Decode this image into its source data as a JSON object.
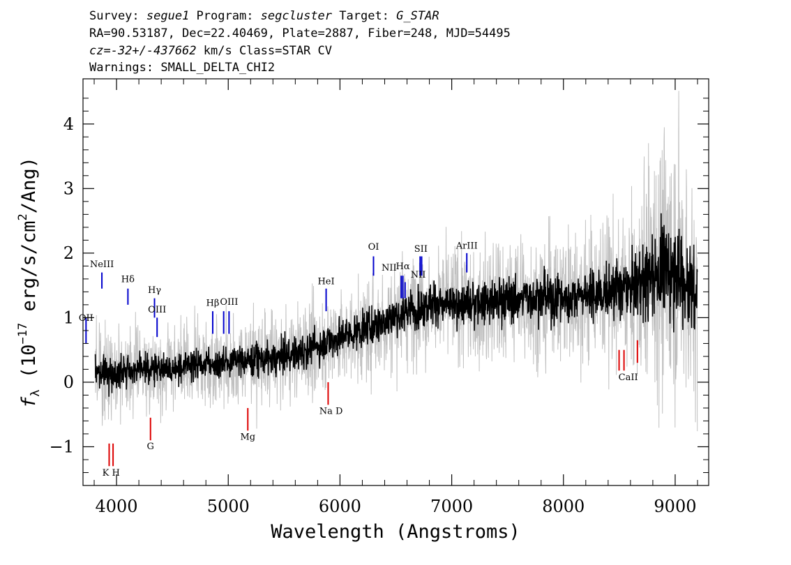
{
  "header": {
    "line1": {
      "k1": "Survey: ",
      "v1": "segue1",
      "k2": " Program: ",
      "v2": "segcluster",
      "k3": " Target: ",
      "v3": "G_STAR"
    },
    "line2": "RA=90.53187, Dec=22.40469, Plate=2887, Fiber=248, MJD=54495",
    "line3": {
      "v1": "cz=-32+/-437662",
      "rest": " km/s Class=STAR CV"
    },
    "line4": "Warnings: SMALL_DELTA_CHI2"
  },
  "chart_data": {
    "type": "line",
    "xlabel": "Wavelength (Angstroms)",
    "ylabel": {
      "prefix": "f",
      "sub": "λ",
      "mid": " (10",
      "exp1": "−17",
      "mid2": " erg/s/cm",
      "exp2": "2",
      "end": "/Ang)"
    },
    "xlim": [
      3700,
      9300
    ],
    "ylim": [
      -1.6,
      4.7
    ],
    "xticks": [
      4000,
      5000,
      6000,
      7000,
      8000,
      9000
    ],
    "xtick_labels": [
      "4000",
      "5000",
      "6000",
      "7000",
      "8000",
      "9000"
    ],
    "yticks": [
      -1,
      0,
      1,
      2,
      3,
      4
    ],
    "ytick_labels": [
      "−1",
      "0",
      "1",
      "2",
      "3",
      "4"
    ],
    "grid": false,
    "series": [
      {
        "role": "error",
        "color": "#c0c0c0",
        "x": [
          3800,
          3900,
          4000,
          4200,
          4400,
          4600,
          4800,
          5000,
          5200,
          5400,
          5600,
          5800,
          6000,
          6200,
          6400,
          6600,
          6800,
          7000,
          7200,
          7400,
          7600,
          7800,
          8000,
          8200,
          8400,
          8600,
          8800,
          9000,
          9200
        ],
        "y": [
          0.45,
          0.4,
          0.38,
          0.36,
          0.36,
          0.36,
          0.38,
          0.38,
          0.4,
          0.4,
          0.42,
          0.42,
          0.45,
          0.45,
          0.48,
          0.48,
          0.5,
          0.5,
          0.52,
          0.55,
          0.55,
          0.58,
          0.6,
          0.62,
          0.65,
          0.75,
          1.1,
          1.3,
          1.0
        ]
      },
      {
        "role": "flux",
        "color": "#000000",
        "x": [
          3800,
          3900,
          4000,
          4200,
          4400,
          4600,
          4800,
          5000,
          5200,
          5400,
          5600,
          5800,
          6000,
          6200,
          6400,
          6600,
          6800,
          7000,
          7200,
          7400,
          7600,
          7800,
          8000,
          8200,
          8400,
          8600,
          8800,
          9000,
          9200
        ],
        "y": [
          0.2,
          0.15,
          0.15,
          0.2,
          0.2,
          0.25,
          0.3,
          0.3,
          0.35,
          0.35,
          0.45,
          0.55,
          0.7,
          0.8,
          0.95,
          1.1,
          1.2,
          1.2,
          1.2,
          1.25,
          1.3,
          1.3,
          1.3,
          1.35,
          1.4,
          1.45,
          1.7,
          1.8,
          1.3
        ]
      }
    ],
    "emission_lines": [
      {
        "label": "OII",
        "wave": 3727,
        "ytop": 1.0,
        "ybot": 0.6
      },
      {
        "label": "NeIII",
        "wave": 3869,
        "ytop": 1.7,
        "ybot": 1.45
      },
      {
        "label": "Hδ",
        "wave": 4102,
        "ytop": 1.45,
        "ybot": 1.2
      },
      {
        "label": "Hγ",
        "wave": 4340,
        "ytop": 1.3,
        "ybot": 1.0
      },
      {
        "label": "OIII",
        "wave": 4363,
        "ytop": 1.0,
        "ybot": 0.7
      },
      {
        "label": "Hβ",
        "wave": 4861,
        "ytop": 1.1,
        "ybot": 0.75
      },
      {
        "label": "OIII",
        "wave": 4959,
        "ytop": 1.1,
        "ybot": 0.75
      },
      {
        "label": "OIII",
        "wave": 5007,
        "ytop": 1.1,
        "ybot": 0.75
      },
      {
        "label": "HeI",
        "wave": 5876,
        "ytop": 1.45,
        "ybot": 1.1
      },
      {
        "label": "OI",
        "wave": 6300,
        "ytop": 1.95,
        "ybot": 1.65
      },
      {
        "label": "NII",
        "wave": 6548,
        "ytop": 1.65,
        "ybot": 1.3
      },
      {
        "label": "Hα",
        "wave": 6563,
        "ytop": 1.65,
        "ybot": 1.3
      },
      {
        "label": "NII",
        "wave": 6583,
        "ytop": 1.55,
        "ybot": 1.3
      },
      {
        "label": "SII",
        "wave": 6717,
        "ytop": 1.95,
        "ybot": 1.65
      },
      {
        "label": "SII",
        "wave": 6731,
        "ytop": 1.95,
        "ybot": 1.65
      },
      {
        "label": "ArIII",
        "wave": 7135,
        "ytop": 2.0,
        "ybot": 1.7
      }
    ],
    "emission_label_positions": [
      {
        "text": "OII",
        "wave": 3727,
        "y": 0.95
      },
      {
        "text": "NeIII",
        "wave": 3869,
        "y": 1.78
      },
      {
        "text": "Hδ",
        "wave": 4102,
        "y": 1.55
      },
      {
        "text": "Hγ",
        "wave": 4340,
        "y": 1.38
      },
      {
        "text": "OIII",
        "wave": 4363,
        "y": 1.08
      },
      {
        "text": "Hβ",
        "wave": 4861,
        "y": 1.18
      },
      {
        "text": "OIII",
        "wave": 5007,
        "y": 1.2
      },
      {
        "text": "HeI",
        "wave": 5876,
        "y": 1.52
      },
      {
        "text": "OI",
        "wave": 6300,
        "y": 2.05
      },
      {
        "text": "NII",
        "wave": 6440,
        "y": 1.73
      },
      {
        "text": "Hα",
        "wave": 6563,
        "y": 1.75
      },
      {
        "text": "NII",
        "wave": 6700,
        "y": 1.62
      },
      {
        "text": "SII",
        "wave": 6724,
        "y": 2.02
      },
      {
        "text": "ArIII",
        "wave": 7135,
        "y": 2.07
      }
    ],
    "absorption_lines": [
      {
        "label": "K",
        "wave": 3934,
        "ytop": -0.95,
        "ybot": -1.3
      },
      {
        "label": "H",
        "wave": 3969,
        "ytop": -0.95,
        "ybot": -1.3
      },
      {
        "label": "G",
        "wave": 4304,
        "ytop": -0.55,
        "ybot": -0.9
      },
      {
        "label": "Mg",
        "wave": 5175,
        "ytop": -0.4,
        "ybot": -0.75
      },
      {
        "label": "Na",
        "wave": 5894,
        "ytop": 0.0,
        "ybot": -0.35
      },
      {
        "label": "CaII",
        "wave": 8498,
        "ytop": 0.5,
        "ybot": 0.18
      },
      {
        "label": "CaII",
        "wave": 8542,
        "ytop": 0.5,
        "ybot": 0.18
      },
      {
        "label": "CaII",
        "wave": 8662,
        "ytop": 0.65,
        "ybot": 0.3
      }
    ],
    "absorption_label_positions": [
      {
        "text": "K H",
        "wave": 3951,
        "y": -1.45
      },
      {
        "text": "G",
        "wave": 4304,
        "y": -1.04
      },
      {
        "text": "Mg",
        "wave": 5175,
        "y": -0.89
      },
      {
        "text": "Na  D",
        "wave": 5920,
        "y": -0.49
      },
      {
        "text": "CaII",
        "wave": 8580,
        "y": 0.03
      }
    ],
    "emission_color": "#0000cc",
    "absorption_color": "#dd0000"
  }
}
